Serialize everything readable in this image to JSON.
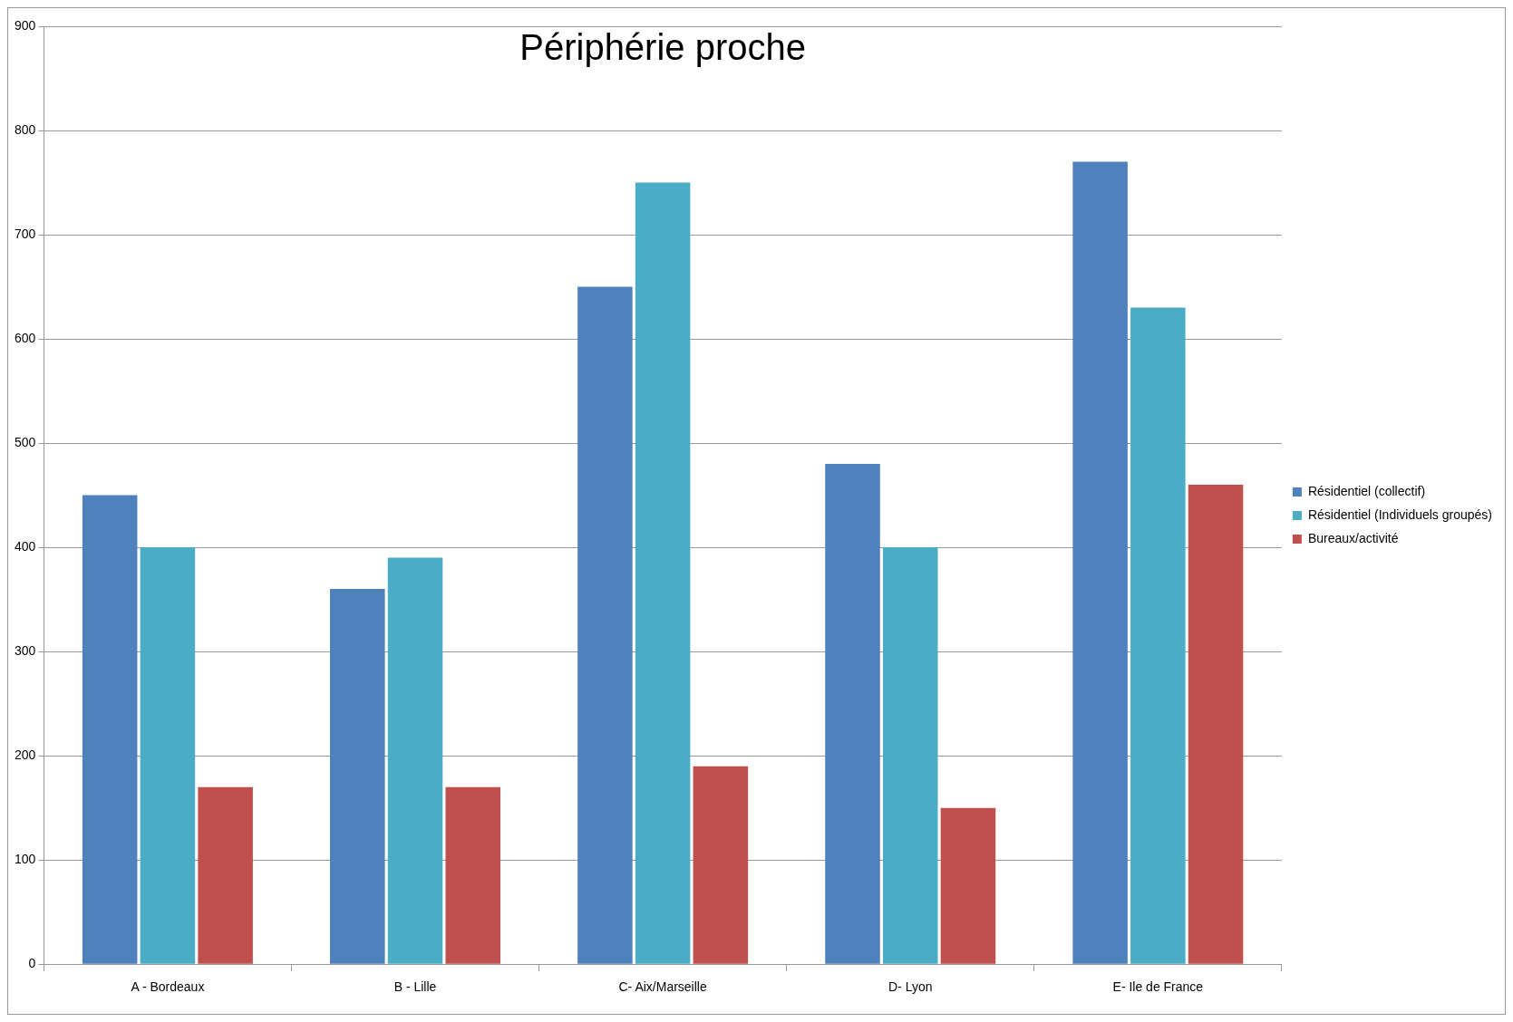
{
  "chart_data": {
    "type": "bar",
    "title": "Périphérie proche",
    "categories": [
      "A - Bordeaux",
      "B - Lille",
      "C- Aix/Marseille",
      "D- Lyon",
      "E- Ile de France"
    ],
    "series": [
      {
        "name": "Résidentiel (collectif)",
        "color": "#4f81bd",
        "values": [
          450,
          360,
          650,
          480,
          770
        ]
      },
      {
        "name": "Résidentiel (Individuels groupés)",
        "color": "#4bacc6",
        "values": [
          400,
          390,
          750,
          400,
          630
        ]
      },
      {
        "name": "Bureaux/activité",
        "color": "#c0504d",
        "values": [
          170,
          170,
          190,
          150,
          460
        ]
      }
    ],
    "ylim": [
      0,
      900
    ],
    "yticks": [
      0,
      100,
      200,
      300,
      400,
      500,
      600,
      700,
      800,
      900
    ],
    "grid": "y",
    "legend": "right"
  }
}
